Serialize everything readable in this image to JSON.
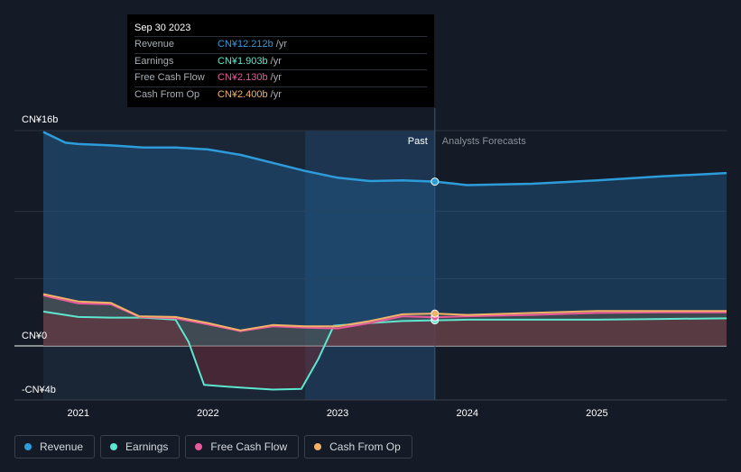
{
  "tooltip": {
    "date": "Sep 30 2023",
    "rows": [
      {
        "label": "Revenue",
        "value": "CN¥12.212b",
        "unit": "/yr",
        "color": "#2d9cdb"
      },
      {
        "label": "Earnings",
        "value": "CN¥1.903b",
        "unit": "/yr",
        "color": "#5ee6cf"
      },
      {
        "label": "Free Cash Flow",
        "value": "CN¥2.130b",
        "unit": "/yr",
        "color": "#e85a9c"
      },
      {
        "label": "Cash From Op",
        "value": "CN¥2.400b",
        "unit": "/yr",
        "color": "#f2b266"
      }
    ]
  },
  "sections": {
    "past": "Past",
    "forecast": "Analysts Forecasts"
  },
  "legend": [
    {
      "label": "Revenue",
      "color": "#2d9cdb"
    },
    {
      "label": "Earnings",
      "color": "#5ee6cf"
    },
    {
      "label": "Free Cash Flow",
      "color": "#e85a9c"
    },
    {
      "label": "Cash From Op",
      "color": "#f2b266"
    }
  ],
  "chart_data": {
    "type": "line",
    "x_unit": "year",
    "x_ticks": [
      2021,
      2022,
      2023,
      2024,
      2025
    ],
    "x_tick_labels": [
      "2021",
      "2022",
      "2023",
      "2024",
      "2025"
    ],
    "xlim": [
      2020.73,
      2026.0
    ],
    "ylim": [
      -4,
      16
    ],
    "y_tick_labels": [
      {
        "value": 16,
        "label": "CN¥16b"
      },
      {
        "value": 0,
        "label": "CN¥0"
      },
      {
        "value": -4,
        "label": "-CN¥4b"
      }
    ],
    "past_end": 2023.75,
    "highlight_start": 2022.75,
    "series": [
      {
        "name": "Revenue",
        "color": "#2d9cdb",
        "points": [
          [
            2020.73,
            15.9
          ],
          [
            2020.9,
            15.1
          ],
          [
            2021.0,
            15.0
          ],
          [
            2021.25,
            14.9
          ],
          [
            2021.5,
            14.75
          ],
          [
            2021.75,
            14.75
          ],
          [
            2022.0,
            14.6
          ],
          [
            2022.25,
            14.2
          ],
          [
            2022.5,
            13.6
          ],
          [
            2022.75,
            13.0
          ],
          [
            2023.0,
            12.5
          ],
          [
            2023.25,
            12.25
          ],
          [
            2023.5,
            12.3
          ],
          [
            2023.75,
            12.21
          ],
          [
            2024.0,
            11.95
          ],
          [
            2024.5,
            12.05
          ],
          [
            2025.0,
            12.3
          ],
          [
            2025.5,
            12.6
          ],
          [
            2026.0,
            12.85
          ]
        ]
      },
      {
        "name": "Earnings",
        "color": "#5ee6cf",
        "points": [
          [
            2020.73,
            2.55
          ],
          [
            2021.0,
            2.15
          ],
          [
            2021.25,
            2.1
          ],
          [
            2021.5,
            2.1
          ],
          [
            2021.75,
            1.95
          ],
          [
            2021.85,
            0.3
          ],
          [
            2021.97,
            -2.9
          ],
          [
            2022.25,
            -3.1
          ],
          [
            2022.5,
            -3.25
          ],
          [
            2022.72,
            -3.2
          ],
          [
            2022.85,
            -1.0
          ],
          [
            2022.97,
            1.5
          ],
          [
            2023.25,
            1.7
          ],
          [
            2023.5,
            1.85
          ],
          [
            2023.75,
            1.9
          ],
          [
            2024.0,
            1.95
          ],
          [
            2024.5,
            1.95
          ],
          [
            2025.0,
            1.95
          ],
          [
            2025.5,
            2.0
          ],
          [
            2026.0,
            2.05
          ]
        ]
      },
      {
        "name": "Free Cash Flow",
        "color": "#e85a9c",
        "points": [
          [
            2020.73,
            3.75
          ],
          [
            2021.0,
            3.15
          ],
          [
            2021.25,
            3.1
          ],
          [
            2021.47,
            2.15
          ],
          [
            2021.75,
            2.05
          ],
          [
            2022.0,
            1.6
          ],
          [
            2022.25,
            1.1
          ],
          [
            2022.5,
            1.45
          ],
          [
            2022.75,
            1.35
          ],
          [
            2023.0,
            1.3
          ],
          [
            2023.25,
            1.7
          ],
          [
            2023.5,
            2.2
          ],
          [
            2023.75,
            2.13
          ],
          [
            2024.0,
            2.2
          ],
          [
            2024.5,
            2.3
          ],
          [
            2025.0,
            2.45
          ],
          [
            2025.5,
            2.5
          ],
          [
            2026.0,
            2.5
          ]
        ]
      },
      {
        "name": "Cash From Op",
        "color": "#f2b266",
        "points": [
          [
            2020.73,
            3.85
          ],
          [
            2021.0,
            3.3
          ],
          [
            2021.25,
            3.2
          ],
          [
            2021.47,
            2.2
          ],
          [
            2021.75,
            2.15
          ],
          [
            2022.0,
            1.7
          ],
          [
            2022.25,
            1.15
          ],
          [
            2022.5,
            1.55
          ],
          [
            2022.75,
            1.45
          ],
          [
            2023.0,
            1.45
          ],
          [
            2023.25,
            1.85
          ],
          [
            2023.5,
            2.35
          ],
          [
            2023.75,
            2.4
          ],
          [
            2024.0,
            2.3
          ],
          [
            2024.5,
            2.45
          ],
          [
            2025.0,
            2.6
          ],
          [
            2025.5,
            2.6
          ],
          [
            2026.0,
            2.6
          ]
        ]
      }
    ]
  }
}
